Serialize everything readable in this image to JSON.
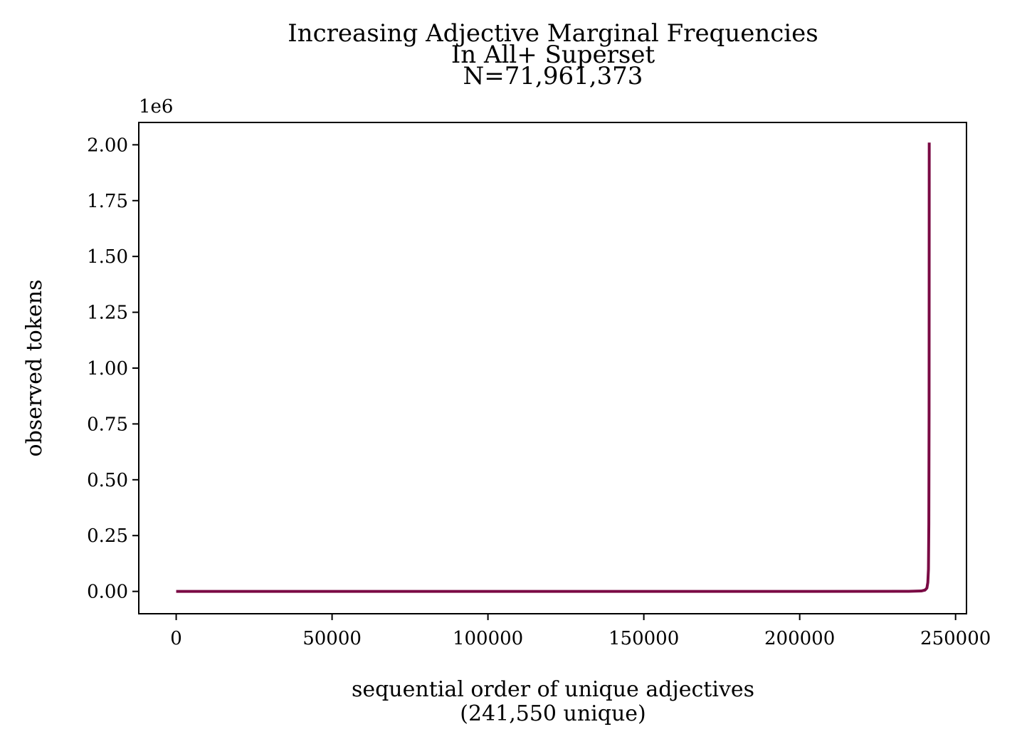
{
  "chart_data": {
    "type": "line",
    "title_lines": [
      "Increasing Adjective Marginal Frequencies",
      "In All+ Superset",
      "N=71,961,373"
    ],
    "xlabel_lines": [
      "sequential order of unique adjectives",
      "(241,550 unique)"
    ],
    "ylabel": "observed tokens",
    "y_offset_text": "1e6",
    "xlim": [
      -12000,
      253500
    ],
    "ylim": [
      -0.1,
      2.1
    ],
    "x_ticks": [
      0,
      50000,
      100000,
      150000,
      200000,
      250000
    ],
    "x_tick_labels": [
      "0",
      "50000",
      "100000",
      "150000",
      "200000",
      "250000"
    ],
    "y_ticks": [
      0.0,
      0.25,
      0.5,
      0.75,
      1.0,
      1.25,
      1.5,
      1.75,
      2.0
    ],
    "y_tick_labels": [
      "0.00",
      "0.25",
      "0.50",
      "0.75",
      "1.00",
      "1.25",
      "1.50",
      "1.75",
      "2.00"
    ],
    "grid": false,
    "legend": "none",
    "series": [
      {
        "color": "#7a0a44",
        "x": [
          0,
          50000,
          100000,
          150000,
          200000,
          235000,
          239000,
          240200,
          240800,
          241100,
          241300,
          241420,
          241500,
          241530,
          241550
        ],
        "y": [
          0.0,
          0.0,
          0.0,
          0.0,
          0.0,
          0.0005,
          0.002,
          0.006,
          0.015,
          0.04,
          0.1,
          0.3,
          0.8,
          1.5,
          2.01
        ]
      }
    ]
  }
}
